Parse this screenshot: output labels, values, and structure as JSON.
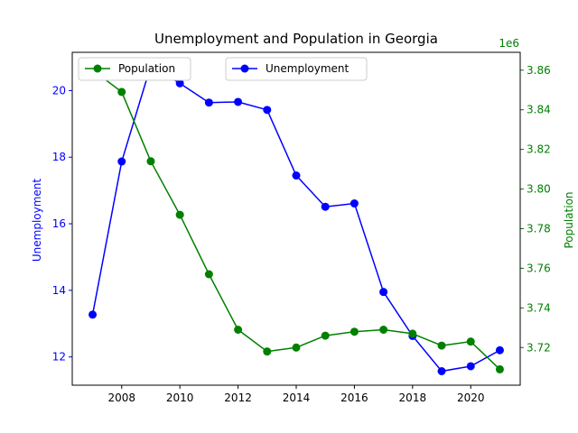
{
  "chart_data": {
    "type": "line",
    "title": "Unemployment and Population in Georgia",
    "x": [
      2007,
      2008,
      2009,
      2010,
      2011,
      2012,
      2013,
      2014,
      2015,
      2016,
      2017,
      2018,
      2019,
      2020,
      2021
    ],
    "x_ticks": [
      2008,
      2010,
      2012,
      2014,
      2016,
      2018,
      2020
    ],
    "xlim": [
      2006.3,
      2021.7
    ],
    "grid": false,
    "left_axis": {
      "label": "Unemployment",
      "color": "#0000ff",
      "ylim": [
        11.15,
        21.15
      ],
      "ticks": [
        12,
        14,
        16,
        18,
        20
      ]
    },
    "right_axis": {
      "label": "Population",
      "color": "#008000",
      "ylim": [
        3701000,
        3869000
      ],
      "ticks": [
        3720000,
        3740000,
        3760000,
        3780000,
        3800000,
        3820000,
        3840000,
        3860000
      ],
      "tick_labels": [
        "3.72",
        "3.74",
        "3.76",
        "3.78",
        "3.80",
        "3.82",
        "3.84",
        "3.86"
      ],
      "offset_text": "1e6"
    },
    "series": [
      {
        "name": "Unemployment",
        "axis": "left",
        "color": "#0000ff",
        "marker": "circle",
        "values": [
          13.27,
          17.87,
          20.75,
          20.22,
          19.64,
          19.66,
          19.42,
          17.45,
          16.51,
          16.61,
          13.95,
          12.63,
          11.57,
          11.72,
          12.2
        ]
      },
      {
        "name": "Population",
        "axis": "right",
        "color": "#008000",
        "marker": "circle",
        "values": [
          3860000,
          3849000,
          3814000,
          3787000,
          3757000,
          3729000,
          3718000,
          3720000,
          3726000,
          3728000,
          3729000,
          3727000,
          3721000,
          3723000,
          3709000
        ]
      }
    ],
    "legends": [
      {
        "series": "Population",
        "placement": "upper-left"
      },
      {
        "series": "Unemployment",
        "placement": "upper-center"
      }
    ]
  }
}
